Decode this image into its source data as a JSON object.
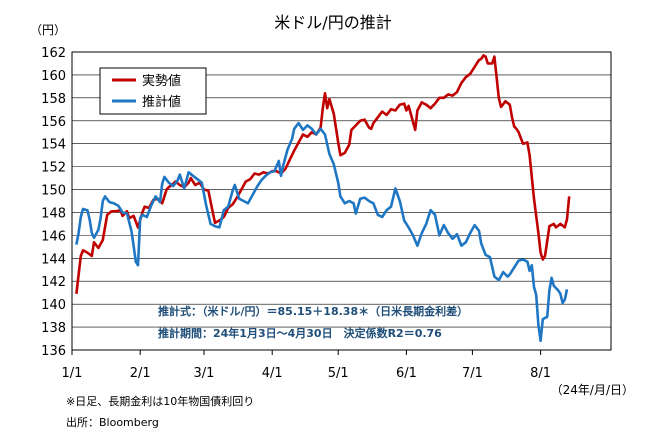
{
  "chart_data": {
    "type": "line",
    "title": "米ドル/円の推計",
    "y_unit": "（円）",
    "x_unit": "（24年/月/日）",
    "ylim": [
      136,
      162
    ],
    "y_ticks": [
      136,
      138,
      140,
      142,
      144,
      146,
      148,
      150,
      152,
      154,
      156,
      158,
      160,
      162
    ],
    "grid": true,
    "legend_position": "top-left",
    "x_range_days": [
      0,
      245
    ],
    "x_ticks": [
      {
        "label": "1/1",
        "day": 0
      },
      {
        "label": "2/1",
        "day": 31
      },
      {
        "label": "3/1",
        "day": 60
      },
      {
        "label": "4/1",
        "day": 91
      },
      {
        "label": "5/1",
        "day": 121
      },
      {
        "label": "6/1",
        "day": 152
      },
      {
        "label": "7/1",
        "day": 182
      },
      {
        "label": "8/1",
        "day": 213
      }
    ],
    "series": [
      {
        "name": "実勢値",
        "color": "#c00000",
        "points": [
          [
            2,
            140.9
          ],
          [
            4,
            144.2
          ],
          [
            5,
            144.7
          ],
          [
            7,
            144.5
          ],
          [
            9,
            144.2
          ],
          [
            10,
            145.4
          ],
          [
            12,
            144.9
          ],
          [
            14,
            145.6
          ],
          [
            16,
            147.8
          ],
          [
            18,
            148.1
          ],
          [
            20,
            148.1
          ],
          [
            22,
            148.2
          ],
          [
            23,
            147.7
          ],
          [
            25,
            148.1
          ],
          [
            26,
            147.5
          ],
          [
            28,
            147.7
          ],
          [
            30,
            146.7
          ],
          [
            32,
            148.0
          ],
          [
            33,
            148.5
          ],
          [
            35,
            148.4
          ],
          [
            37,
            149.1
          ],
          [
            39,
            149.2
          ],
          [
            41,
            148.8
          ],
          [
            43,
            150.0
          ],
          [
            44,
            150.2
          ],
          [
            46,
            150.5
          ],
          [
            47,
            150.7
          ],
          [
            49,
            150.4
          ],
          [
            51,
            150.2
          ],
          [
            53,
            150.6
          ],
          [
            54,
            151.0
          ],
          [
            56,
            150.4
          ],
          [
            58,
            150.6
          ],
          [
            60,
            150.0
          ],
          [
            62,
            149.9
          ],
          [
            64,
            148.0
          ],
          [
            65,
            147.1
          ],
          [
            67,
            147.3
          ],
          [
            69,
            147.6
          ],
          [
            71,
            148.4
          ],
          [
            73,
            148.7
          ],
          [
            75,
            149.3
          ],
          [
            77,
            150.0
          ],
          [
            79,
            150.7
          ],
          [
            81,
            150.9
          ],
          [
            83,
            151.4
          ],
          [
            85,
            151.3
          ],
          [
            87,
            151.5
          ],
          [
            89,
            151.4
          ],
          [
            91,
            151.6
          ],
          [
            93,
            151.6
          ],
          [
            95,
            151.4
          ],
          [
            97,
            151.8
          ],
          [
            99,
            152.6
          ],
          [
            101,
            153.4
          ],
          [
            103,
            154.1
          ],
          [
            105,
            154.8
          ],
          [
            107,
            154.6
          ],
          [
            109,
            155.0
          ],
          [
            111,
            154.8
          ],
          [
            113,
            155.4
          ],
          [
            114,
            157.1
          ],
          [
            115,
            158.4
          ],
          [
            116,
            157.1
          ],
          [
            117,
            157.9
          ],
          [
            119,
            156.6
          ],
          [
            121,
            154.1
          ],
          [
            122,
            153.0
          ],
          [
            124,
            153.2
          ],
          [
            126,
            153.9
          ],
          [
            127,
            155.2
          ],
          [
            129,
            155.6
          ],
          [
            131,
            156.0
          ],
          [
            133,
            156.1
          ],
          [
            135,
            155.4
          ],
          [
            136,
            155.3
          ],
          [
            137,
            155.8
          ],
          [
            139,
            156.3
          ],
          [
            141,
            156.8
          ],
          [
            143,
            156.5
          ],
          [
            145,
            157.0
          ],
          [
            147,
            156.9
          ],
          [
            149,
            157.4
          ],
          [
            151,
            157.5
          ],
          [
            152,
            156.9
          ],
          [
            153,
            157.3
          ],
          [
            155,
            155.9
          ],
          [
            156,
            155.2
          ],
          [
            157,
            156.9
          ],
          [
            159,
            157.6
          ],
          [
            161,
            157.4
          ],
          [
            163,
            157.1
          ],
          [
            165,
            157.5
          ],
          [
            167,
            158.0
          ],
          [
            169,
            158.0
          ],
          [
            171,
            158.3
          ],
          [
            173,
            158.2
          ],
          [
            175,
            158.5
          ],
          [
            177,
            159.3
          ],
          [
            179,
            159.8
          ],
          [
            181,
            160.1
          ],
          [
            183,
            160.7
          ],
          [
            185,
            161.3
          ],
          [
            186,
            161.4
          ],
          [
            187,
            161.7
          ],
          [
            188,
            161.6
          ],
          [
            189,
            161.0
          ],
          [
            191,
            161.0
          ],
          [
            192,
            161.6
          ],
          [
            194,
            158.0
          ],
          [
            195,
            157.2
          ],
          [
            197,
            157.7
          ],
          [
            199,
            157.4
          ],
          [
            200,
            156.3
          ],
          [
            201,
            155.5
          ],
          [
            202,
            155.3
          ],
          [
            203,
            155.0
          ],
          [
            205,
            154.0
          ],
          [
            207,
            154.1
          ],
          [
            208,
            153.0
          ],
          [
            210,
            149.2
          ],
          [
            212,
            146.2
          ],
          [
            213,
            144.5
          ],
          [
            214,
            143.9
          ],
          [
            215,
            144.2
          ],
          [
            217,
            146.8
          ],
          [
            219,
            147.0
          ],
          [
            220,
            146.7
          ],
          [
            222,
            147.0
          ],
          [
            224,
            146.7
          ],
          [
            225,
            147.4
          ],
          [
            226,
            149.4
          ]
        ]
      },
      {
        "name": "推計値",
        "color": "#1f77c4",
        "points": [
          [
            2,
            145.2
          ],
          [
            3,
            146.2
          ],
          [
            4,
            147.6
          ],
          [
            5,
            148.3
          ],
          [
            7,
            148.2
          ],
          [
            8,
            147.4
          ],
          [
            9,
            146.2
          ],
          [
            10,
            145.8
          ],
          [
            12,
            146.5
          ],
          [
            13,
            147.5
          ],
          [
            14,
            149.0
          ],
          [
            15,
            149.4
          ],
          [
            17,
            148.9
          ],
          [
            19,
            148.8
          ],
          [
            21,
            148.6
          ],
          [
            23,
            148.0
          ],
          [
            25,
            147.9
          ],
          [
            27,
            146.4
          ],
          [
            28,
            145.1
          ],
          [
            29,
            143.7
          ],
          [
            30,
            143.4
          ],
          [
            31,
            147.5
          ],
          [
            32,
            147.8
          ],
          [
            34,
            147.6
          ],
          [
            36,
            148.6
          ],
          [
            38,
            149.4
          ],
          [
            40,
            148.9
          ],
          [
            41,
            150.5
          ],
          [
            42,
            151.1
          ],
          [
            44,
            150.6
          ],
          [
            46,
            150.3
          ],
          [
            48,
            150.8
          ],
          [
            49,
            151.3
          ],
          [
            51,
            150.1
          ],
          [
            53,
            151.5
          ],
          [
            55,
            151.2
          ],
          [
            57,
            150.9
          ],
          [
            59,
            150.6
          ],
          [
            61,
            148.6
          ],
          [
            63,
            147.0
          ],
          [
            65,
            146.8
          ],
          [
            67,
            146.7
          ],
          [
            69,
            148.2
          ],
          [
            71,
            148.5
          ],
          [
            73,
            149.9
          ],
          [
            74,
            150.4
          ],
          [
            76,
            149.2
          ],
          [
            78,
            149.0
          ],
          [
            80,
            148.8
          ],
          [
            82,
            149.5
          ],
          [
            84,
            150.2
          ],
          [
            86,
            150.8
          ],
          [
            88,
            151.2
          ],
          [
            90,
            151.5
          ],
          [
            92,
            151.6
          ],
          [
            94,
            152.5
          ],
          [
            95,
            151.2
          ],
          [
            96,
            152.1
          ],
          [
            98,
            153.5
          ],
          [
            100,
            154.4
          ],
          [
            101,
            155.3
          ],
          [
            103,
            155.8
          ],
          [
            105,
            155.2
          ],
          [
            107,
            155.6
          ],
          [
            109,
            155.3
          ],
          [
            111,
            154.8
          ],
          [
            113,
            155.3
          ],
          [
            115,
            154.8
          ],
          [
            117,
            153.1
          ],
          [
            119,
            152.2
          ],
          [
            121,
            150.6
          ],
          [
            122,
            149.4
          ],
          [
            124,
            148.8
          ],
          [
            126,
            149.0
          ],
          [
            128,
            148.8
          ],
          [
            129,
            147.9
          ],
          [
            131,
            149.2
          ],
          [
            133,
            149.3
          ],
          [
            135,
            149.0
          ],
          [
            137,
            148.8
          ],
          [
            139,
            147.8
          ],
          [
            141,
            147.6
          ],
          [
            143,
            148.2
          ],
          [
            145,
            148.5
          ],
          [
            147,
            150.1
          ],
          [
            149,
            149.0
          ],
          [
            151,
            147.3
          ],
          [
            153,
            146.7
          ],
          [
            155,
            146.0
          ],
          [
            157,
            145.1
          ],
          [
            159,
            146.2
          ],
          [
            161,
            147.0
          ],
          [
            163,
            148.2
          ],
          [
            165,
            147.8
          ],
          [
            167,
            146.0
          ],
          [
            169,
            146.9
          ],
          [
            171,
            146.2
          ],
          [
            173,
            145.7
          ],
          [
            175,
            146.1
          ],
          [
            177,
            145.1
          ],
          [
            179,
            145.4
          ],
          [
            181,
            146.2
          ],
          [
            183,
            146.9
          ],
          [
            185,
            146.4
          ],
          [
            186,
            145.3
          ],
          [
            188,
            144.3
          ],
          [
            190,
            144.1
          ],
          [
            192,
            142.4
          ],
          [
            194,
            142.1
          ],
          [
            196,
            142.8
          ],
          [
            198,
            142.4
          ],
          [
            199,
            142.6
          ],
          [
            201,
            143.2
          ],
          [
            203,
            143.8
          ],
          [
            205,
            143.9
          ],
          [
            207,
            143.7
          ],
          [
            208,
            142.9
          ],
          [
            209,
            143.4
          ],
          [
            210,
            141.5
          ],
          [
            211,
            140.8
          ],
          [
            212,
            138.2
          ],
          [
            213,
            136.8
          ],
          [
            214,
            138.7
          ],
          [
            216,
            138.9
          ],
          [
            217,
            141.2
          ],
          [
            218,
            142.3
          ],
          [
            219,
            141.6
          ],
          [
            221,
            141.2
          ],
          [
            222,
            140.9
          ],
          [
            223,
            140.1
          ],
          [
            224,
            140.4
          ],
          [
            225,
            141.3
          ]
        ]
      }
    ],
    "annotations": {
      "formula": "推計式：（米ドル/円）＝85.15＋18.38＊（日米長期金利差）",
      "period": "推計期間：24年1月3日～4月30日　決定係数R2＝0.76"
    },
    "notes": {
      "note1": "※日足、長期金利は10年物国債利回り",
      "source": "出所：Bloomberg"
    }
  }
}
